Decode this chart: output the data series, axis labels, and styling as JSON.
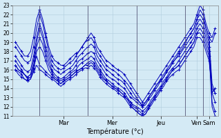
{
  "xlabel": "Température (°c)",
  "ylim": [
    11,
    23
  ],
  "yticks": [
    11,
    12,
    13,
    14,
    15,
    16,
    17,
    18,
    19,
    20,
    21,
    22,
    23
  ],
  "background_color": "#d4eaf5",
  "grid_color": "#b0ccdd",
  "line_color": "#0000bb",
  "days": [
    "Mar",
    "Mer",
    "Jeu",
    "Ven",
    "Sam"
  ],
  "day_x_positions": [
    16,
    32,
    48,
    60,
    64
  ],
  "day_line_positions": [
    8,
    24,
    40,
    56,
    62
  ],
  "total_points": 67,
  "series": [
    [
      19.0,
      18.5,
      18.0,
      17.5,
      17.5,
      18.0,
      19.5,
      21.5,
      22.5,
      21.5,
      20.0,
      18.5,
      17.5,
      17.0,
      16.8,
      16.5,
      16.5,
      16.8,
      17.2,
      17.5,
      17.8,
      18.0,
      18.5,
      19.0,
      19.5,
      20.0,
      19.5,
      18.5,
      18.0,
      17.5,
      17.0,
      16.8,
      16.5,
      16.2,
      16.0,
      15.8,
      15.5,
      15.0,
      14.5,
      14.0,
      13.5,
      13.0,
      12.5,
      13.0,
      13.5,
      14.0,
      14.5,
      15.0,
      15.5,
      16.0,
      16.5,
      17.0,
      17.5,
      18.0,
      18.5,
      19.0,
      19.5,
      20.0,
      20.5,
      21.0,
      22.0,
      23.0,
      22.5,
      21.0,
      20.0,
      19.5,
      20.5
    ],
    [
      18.5,
      18.0,
      17.5,
      17.0,
      16.8,
      17.0,
      18.5,
      20.5,
      22.0,
      21.0,
      19.5,
      18.0,
      17.0,
      16.5,
      16.2,
      16.0,
      16.2,
      16.5,
      16.8,
      17.0,
      17.5,
      18.0,
      18.5,
      19.0,
      19.2,
      19.5,
      19.0,
      18.0,
      17.5,
      17.0,
      16.5,
      16.2,
      16.0,
      15.8,
      15.5,
      15.2,
      14.8,
      14.5,
      14.0,
      13.5,
      13.0,
      12.5,
      12.0,
      12.5,
      13.0,
      13.5,
      14.0,
      14.5,
      15.0,
      15.5,
      16.0,
      16.5,
      17.0,
      17.5,
      18.0,
      18.5,
      19.0,
      19.5,
      20.0,
      20.5,
      21.5,
      22.5,
      22.0,
      20.5,
      19.5,
      19.0,
      20.0
    ],
    [
      17.5,
      17.0,
      16.5,
      16.0,
      15.8,
      16.0,
      17.5,
      19.5,
      21.0,
      20.0,
      18.5,
      17.5,
      16.5,
      16.0,
      15.8,
      15.5,
      15.8,
      16.0,
      16.2,
      16.5,
      17.0,
      17.5,
      17.8,
      18.2,
      18.5,
      18.8,
      18.5,
      17.5,
      17.0,
      16.5,
      16.0,
      15.8,
      15.5,
      15.2,
      15.0,
      14.8,
      14.5,
      14.0,
      13.5,
      13.0,
      12.8,
      12.5,
      12.2,
      12.5,
      13.0,
      13.5,
      14.0,
      14.5,
      14.8,
      15.2,
      15.8,
      16.2,
      16.8,
      17.2,
      17.8,
      18.2,
      18.8,
      19.5,
      20.0,
      20.5,
      21.5,
      22.0,
      21.5,
      20.5,
      19.5,
      14.5,
      13.5
    ],
    [
      17.0,
      16.5,
      16.0,
      15.5,
      15.2,
      15.5,
      17.0,
      19.0,
      20.5,
      19.5,
      18.0,
      17.0,
      16.0,
      15.5,
      15.2,
      15.0,
      15.2,
      15.5,
      15.8,
      16.0,
      16.5,
      17.0,
      17.2,
      17.5,
      17.8,
      18.0,
      17.8,
      17.0,
      16.5,
      16.0,
      15.5,
      15.2,
      15.0,
      14.8,
      14.5,
      14.2,
      14.0,
      13.5,
      13.0,
      12.8,
      12.5,
      12.2,
      12.0,
      12.2,
      12.8,
      13.2,
      13.8,
      14.2,
      14.8,
      15.2,
      15.8,
      16.2,
      16.8,
      17.2,
      17.5,
      18.0,
      18.5,
      19.0,
      19.5,
      20.0,
      21.0,
      21.5,
      21.0,
      20.0,
      19.0,
      13.5,
      12.5
    ],
    [
      16.5,
      16.0,
      15.8,
      15.5,
      15.0,
      15.2,
      16.5,
      18.5,
      19.5,
      18.8,
      17.5,
      16.5,
      15.8,
      15.2,
      15.0,
      14.8,
      15.0,
      15.2,
      15.5,
      15.8,
      16.0,
      16.5,
      16.8,
      17.0,
      17.2,
      17.5,
      17.2,
      16.5,
      16.0,
      15.5,
      15.0,
      14.8,
      14.5,
      14.2,
      14.0,
      13.8,
      13.5,
      13.0,
      12.5,
      12.2,
      12.0,
      11.8,
      11.5,
      11.8,
      12.2,
      12.8,
      13.2,
      13.8,
      14.2,
      14.8,
      15.2,
      15.8,
      16.2,
      16.5,
      17.0,
      17.5,
      18.0,
      18.5,
      19.0,
      19.5,
      20.5,
      21.0,
      20.5,
      19.5,
      18.5,
      12.5,
      11.5
    ],
    [
      16.0,
      15.8,
      15.5,
      15.0,
      14.8,
      15.0,
      16.0,
      18.0,
      18.5,
      18.0,
      17.0,
      16.0,
      15.5,
      15.0,
      14.8,
      14.5,
      14.8,
      15.0,
      15.2,
      15.5,
      15.8,
      16.0,
      16.2,
      16.5,
      16.8,
      17.0,
      16.8,
      16.2,
      15.8,
      15.2,
      14.8,
      14.5,
      14.2,
      14.0,
      13.8,
      13.5,
      13.2,
      12.8,
      12.2,
      11.8,
      11.5,
      11.2,
      11.0,
      11.2,
      11.8,
      12.5,
      13.0,
      13.5,
      14.0,
      14.5,
      15.0,
      15.5,
      16.0,
      16.2,
      16.5,
      17.0,
      17.5,
      18.0,
      18.5,
      19.0,
      20.0,
      20.5,
      20.0,
      19.0,
      18.0,
      12.0,
      11.0
    ],
    [
      16.5,
      16.0,
      15.8,
      15.5,
      15.2,
      15.5,
      16.2,
      17.5,
      16.5,
      16.2,
      15.8,
      15.5,
      15.2,
      15.0,
      14.8,
      14.5,
      14.8,
      15.0,
      15.2,
      15.5,
      15.8,
      16.0,
      16.2,
      16.5,
      16.5,
      16.8,
      16.5,
      16.0,
      15.5,
      15.0,
      14.8,
      14.5,
      14.2,
      14.0,
      13.8,
      13.5,
      13.2,
      12.8,
      12.5,
      12.0,
      11.8,
      11.5,
      11.2,
      11.5,
      12.0,
      12.5,
      13.0,
      13.5,
      14.0,
      14.5,
      15.0,
      15.5,
      16.0,
      16.2,
      16.5,
      17.0,
      17.5,
      18.0,
      18.5,
      19.0,
      20.0,
      20.0,
      19.5,
      18.5,
      17.5,
      13.5,
      14.0
    ],
    [
      16.0,
      15.5,
      15.2,
      15.0,
      14.8,
      15.0,
      15.8,
      16.5,
      16.0,
      15.8,
      15.5,
      15.2,
      15.0,
      14.8,
      14.5,
      14.2,
      14.5,
      14.8,
      15.0,
      15.2,
      15.5,
      15.8,
      16.0,
      16.2,
      16.2,
      16.5,
      16.2,
      15.8,
      15.2,
      14.8,
      14.5,
      14.2,
      14.0,
      13.8,
      13.5,
      13.2,
      13.0,
      12.5,
      12.0,
      11.8,
      11.5,
      11.2,
      11.0,
      11.2,
      11.8,
      12.2,
      12.8,
      13.2,
      13.8,
      14.2,
      14.8,
      15.2,
      15.5,
      15.8,
      16.0,
      16.5,
      17.0,
      17.5,
      18.0,
      18.5,
      19.5,
      19.5,
      19.0,
      18.0,
      17.0,
      14.0,
      13.5
    ]
  ]
}
